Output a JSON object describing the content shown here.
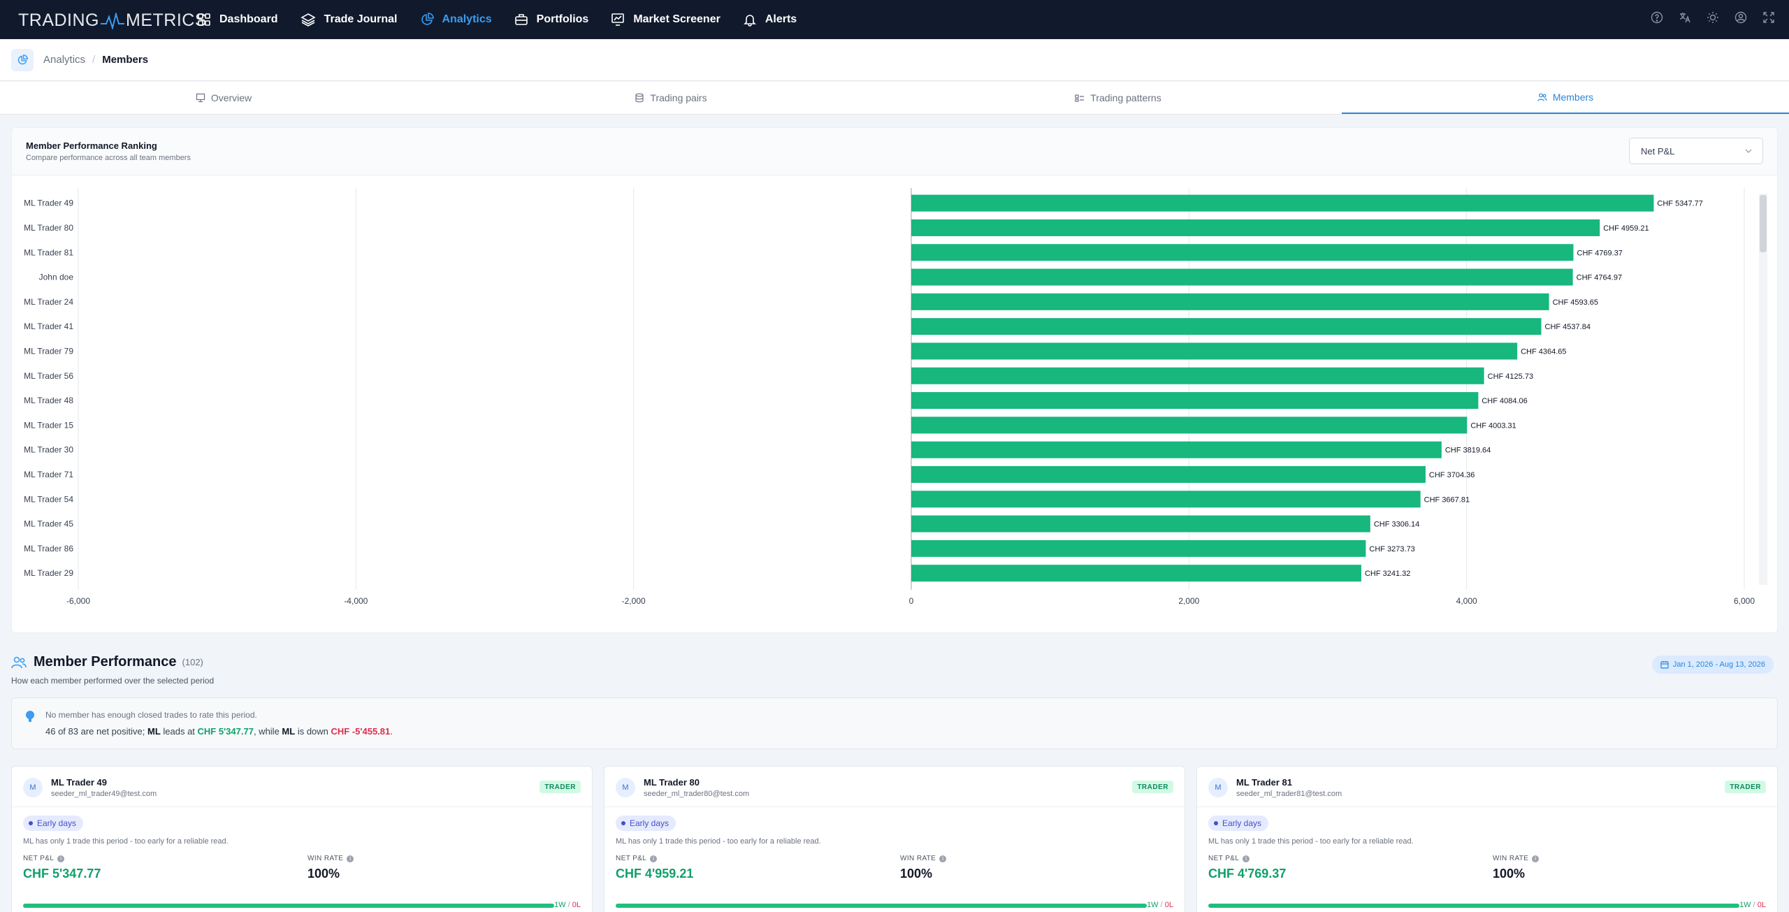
{
  "nav": {
    "logo_left": "TRADING",
    "logo_right": "METRICS",
    "items": [
      {
        "label": "Dashboard",
        "icon": "grid-icon"
      },
      {
        "label": "Trade Journal",
        "icon": "layers-icon"
      },
      {
        "label": "Analytics",
        "icon": "pie-chart-icon",
        "active": true
      },
      {
        "label": "Portfolios",
        "icon": "briefcase-icon"
      },
      {
        "label": "Market Screener",
        "icon": "monitor-chart-icon"
      },
      {
        "label": "Alerts",
        "icon": "bell-icon"
      }
    ],
    "right_icons": [
      "help-icon",
      "translate-icon",
      "theme-sun-icon",
      "user-icon",
      "fullscreen-icon"
    ]
  },
  "breadcrumb": {
    "parent": "Analytics",
    "separator": "/",
    "current": "Members"
  },
  "tabs": [
    {
      "label": "Overview",
      "icon": "presentation-icon"
    },
    {
      "label": "Trading pairs",
      "icon": "coins-icon"
    },
    {
      "label": "Trading patterns",
      "icon": "pattern-icon"
    },
    {
      "label": "Members",
      "icon": "users-icon",
      "active": true
    }
  ],
  "ranking": {
    "title": "Member Performance Ranking",
    "subtitle": "Compare performance across all team members",
    "metric_selected": "Net P&L"
  },
  "chart_data": {
    "type": "bar",
    "orientation": "horizontal",
    "categories": [
      "ML Trader 49",
      "ML Trader 80",
      "ML Trader 81",
      "John doe",
      "ML Trader 24",
      "ML Trader 41",
      "ML Trader 79",
      "ML Trader 56",
      "ML Trader 48",
      "ML Trader 15",
      "ML Trader 30",
      "ML Trader 71",
      "ML Trader 54",
      "ML Trader 45",
      "ML Trader 86",
      "ML Trader 29"
    ],
    "values": [
      5347.77,
      4959.21,
      4769.37,
      4764.97,
      4593.65,
      4537.84,
      4364.65,
      4125.73,
      4084.06,
      4003.31,
      3819.64,
      3704.36,
      3667.81,
      3306.14,
      3273.73,
      3241.32
    ],
    "value_labels": [
      "CHF 5347.77",
      "CHF 4959.21",
      "CHF 4769.37",
      "CHF 4764.97",
      "CHF 4593.65",
      "CHF 4537.84",
      "CHF 4364.65",
      "CHF 4125.73",
      "CHF 4084.06",
      "CHF 4003.31",
      "CHF 3819.64",
      "CHF 3704.36",
      "CHF 3667.81",
      "CHF 3306.14",
      "CHF 3273.73",
      "CHF 3241.32"
    ],
    "xlim": [
      -6000,
      6000
    ],
    "x_ticks": [
      -6000,
      -4000,
      -2000,
      0,
      2000,
      4000,
      6000
    ],
    "x_tick_labels": [
      "-6,000",
      "-4,000",
      "-2,000",
      "0",
      "2,000",
      "4,000",
      "6,000"
    ],
    "bar_color": "#17b77e",
    "grid": true
  },
  "members_section": {
    "title": "Member Performance",
    "count": "(102)",
    "subtitle": "How each member performed over the selected period",
    "date_range": "Jan 1, 2026 - Aug 13, 2026"
  },
  "insight": {
    "line1": "No member has enough closed trades to rate this period.",
    "l2_a": "46 of 83 are net positive; ",
    "l2_leader": "ML",
    "l2_b": " leads at ",
    "l2_top": "CHF 5'347.77",
    "l2_c": ", while ",
    "l2_laggard": "ML",
    "l2_d": " is down ",
    "l2_bottom": "CHF -5'455.81",
    "l2_e": "."
  },
  "cards": [
    {
      "avatar": "M",
      "name": "ML Trader 49",
      "email": "seeder_ml_trader49@test.com",
      "role": "TRADER",
      "badge": "Early days",
      "note": "ML has only 1 trade this period - too early for a reliable read.",
      "pnl_label": "NET P&L",
      "pnl": "CHF 5'347.77",
      "winrate_label": "WIN RATE",
      "winrate": "100%",
      "wins": "1W",
      "sep": "/",
      "losses": "0L",
      "win_fraction": 1.0
    },
    {
      "avatar": "M",
      "name": "ML Trader 80",
      "email": "seeder_ml_trader80@test.com",
      "role": "TRADER",
      "badge": "Early days",
      "note": "ML has only 1 trade this period - too early for a reliable read.",
      "pnl_label": "NET P&L",
      "pnl": "CHF 4'959.21",
      "winrate_label": "WIN RATE",
      "winrate": "100%",
      "wins": "1W",
      "sep": "/",
      "losses": "0L",
      "win_fraction": 1.0
    },
    {
      "avatar": "M",
      "name": "ML Trader 81",
      "email": "seeder_ml_trader81@test.com",
      "role": "TRADER",
      "badge": "Early days",
      "note": "ML has only 1 trade this period - too early for a reliable read.",
      "pnl_label": "NET P&L",
      "pnl": "CHF 4'769.37",
      "winrate_label": "WIN RATE",
      "winrate": "100%",
      "wins": "1W",
      "sep": "/",
      "losses": "0L",
      "win_fraction": 1.0
    }
  ]
}
